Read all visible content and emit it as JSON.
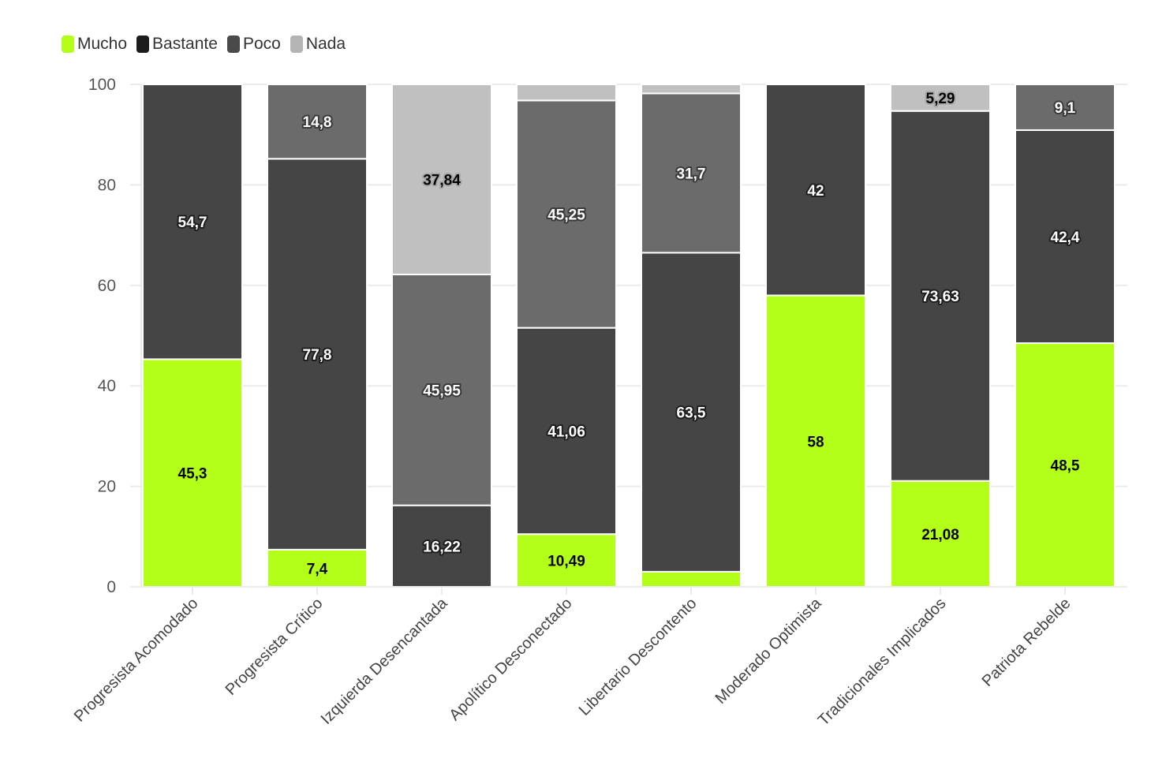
{
  "chart_data": {
    "type": "bar",
    "stacked": true,
    "title": "",
    "xlabel": "",
    "ylabel": "",
    "ylim": [
      0,
      100
    ],
    "yticks": [
      0,
      20,
      40,
      60,
      80,
      100
    ],
    "grid": true,
    "legend_position": "top-left",
    "categories": [
      "Progresista Acomodado",
      "Progresista Crítico",
      "Izquierda Desencantada",
      "Apolítico Desconectado",
      "Libertario Descontento",
      "Moderado Optimista",
      "Tradicionales Implicados",
      "Patriota Rebelde"
    ],
    "series": [
      {
        "name": "Mucho",
        "color": "#b3ff1a",
        "label_color": "#000000",
        "halo_color": "#b3ff1a",
        "values": [
          45.3,
          7.4,
          0,
          10.49,
          3.0,
          58,
          21.08,
          48.5
        ],
        "labels": [
          "45,3",
          "7,4",
          "",
          "10,49",
          "",
          "58",
          "21,08",
          "48,5"
        ]
      },
      {
        "name": "Bastante",
        "color": "#454545",
        "label_color": "#ffffff",
        "halo_color": "#1e1e1e",
        "values": [
          54.7,
          77.8,
          16.22,
          41.06,
          63.5,
          42,
          73.63,
          42.4
        ],
        "labels": [
          "54,7",
          "77,8",
          "16,22",
          "41,06",
          "63,5",
          "42",
          "73,63",
          "42,4"
        ]
      },
      {
        "name": "Poco",
        "color": "#6b6b6b",
        "label_color": "#ffffff",
        "halo_color": "#3a3a3a",
        "values": [
          0,
          14.8,
          45.95,
          45.25,
          31.7,
          0,
          0,
          9.1
        ],
        "labels": [
          "",
          "14,8",
          "45,95",
          "45,25",
          "31,7",
          "",
          "",
          "9,1"
        ]
      },
      {
        "name": "Nada",
        "color": "#c0c0c0",
        "label_color": "#000000",
        "halo_color": "#aaaaaa",
        "values": [
          0,
          0,
          37.84,
          3.2,
          1.8,
          0,
          5.29,
          0
        ],
        "labels": [
          "",
          "",
          "37,84",
          "",
          "",
          "",
          "5,29",
          ""
        ]
      }
    ]
  },
  "legend": {
    "items": [
      {
        "label": "Mucho",
        "color": "#b3ff1a"
      },
      {
        "label": "Bastante",
        "color": "#1c1c1c"
      },
      {
        "label": "Poco",
        "color": "#4a4a4a"
      },
      {
        "label": "Nada",
        "color": "#b4b4b4"
      }
    ]
  }
}
